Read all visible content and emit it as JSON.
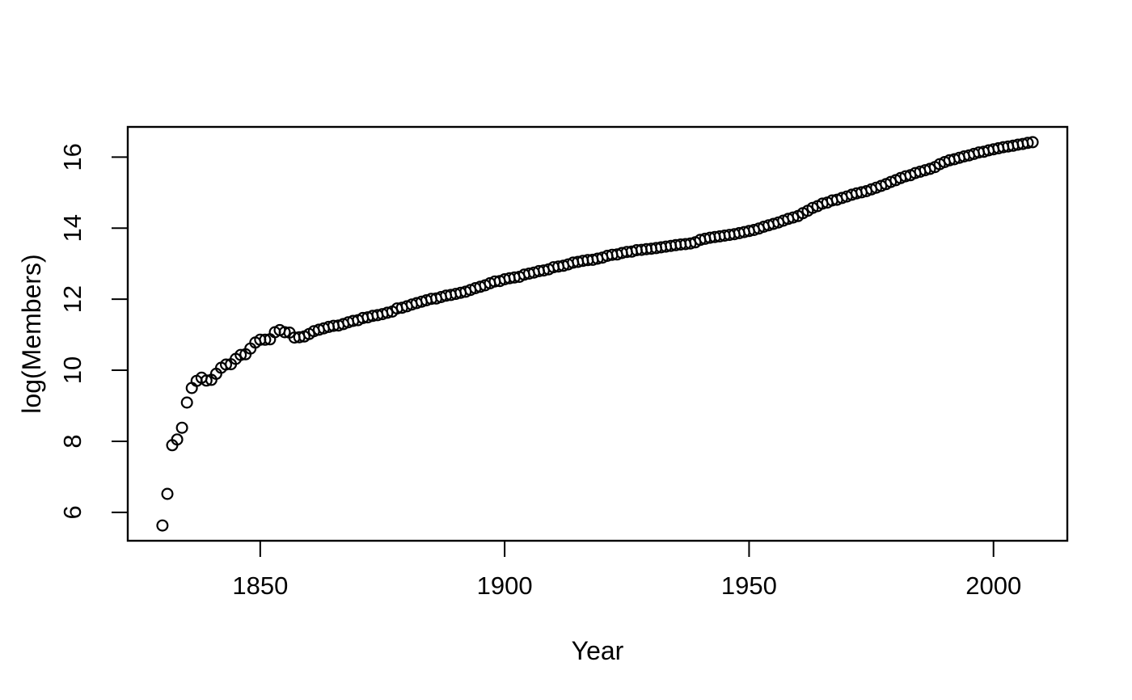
{
  "chart_data": {
    "type": "scatter",
    "xlabel": "Year",
    "ylabel": "log(Members)",
    "x_ticks": [
      1850,
      1900,
      1950,
      2000
    ],
    "y_ticks": [
      6,
      8,
      10,
      12,
      14,
      16
    ],
    "xlim": [
      1822.9,
      2015.1
    ],
    "ylim": [
      5.2,
      16.85
    ],
    "grid": false,
    "legend": "none",
    "marker": {
      "style": "open-circle",
      "color": "#000000",
      "fill": "none"
    },
    "colors": {
      "background": "#ffffff",
      "axis": "#000000",
      "text": "#000000"
    },
    "points": [
      [
        1830,
        5.63
      ],
      [
        1831,
        6.52
      ],
      [
        1832,
        7.89
      ],
      [
        1833,
        8.05
      ],
      [
        1834,
        8.38
      ],
      [
        1835,
        9.09
      ],
      [
        1836,
        9.5
      ],
      [
        1837,
        9.7
      ],
      [
        1838,
        9.79
      ],
      [
        1839,
        9.71
      ],
      [
        1840,
        9.73
      ],
      [
        1841,
        9.9
      ],
      [
        1842,
        10.07
      ],
      [
        1843,
        10.16
      ],
      [
        1844,
        10.17
      ],
      [
        1845,
        10.32
      ],
      [
        1846,
        10.43
      ],
      [
        1847,
        10.45
      ],
      [
        1848,
        10.61
      ],
      [
        1849,
        10.78
      ],
      [
        1850,
        10.86
      ],
      [
        1851,
        10.86
      ],
      [
        1852,
        10.87
      ],
      [
        1853,
        11.07
      ],
      [
        1854,
        11.13
      ],
      [
        1855,
        11.07
      ],
      [
        1856,
        11.06
      ],
      [
        1857,
        10.92
      ],
      [
        1858,
        10.93
      ],
      [
        1859,
        10.95
      ],
      [
        1860,
        11.02
      ],
      [
        1861,
        11.1
      ],
      [
        1862,
        11.14
      ],
      [
        1863,
        11.18
      ],
      [
        1864,
        11.22
      ],
      [
        1865,
        11.25
      ],
      [
        1866,
        11.26
      ],
      [
        1867,
        11.3
      ],
      [
        1868,
        11.35
      ],
      [
        1869,
        11.39
      ],
      [
        1870,
        11.41
      ],
      [
        1871,
        11.47
      ],
      [
        1872,
        11.49
      ],
      [
        1873,
        11.53
      ],
      [
        1874,
        11.55
      ],
      [
        1875,
        11.58
      ],
      [
        1876,
        11.62
      ],
      [
        1877,
        11.65
      ],
      [
        1878,
        11.74
      ],
      [
        1879,
        11.76
      ],
      [
        1880,
        11.8
      ],
      [
        1881,
        11.85
      ],
      [
        1882,
        11.89
      ],
      [
        1883,
        11.93
      ],
      [
        1884,
        11.97
      ],
      [
        1885,
        12.01
      ],
      [
        1886,
        12.02
      ],
      [
        1887,
        12.06
      ],
      [
        1888,
        12.1
      ],
      [
        1889,
        12.12
      ],
      [
        1890,
        12.15
      ],
      [
        1891,
        12.18
      ],
      [
        1892,
        12.21
      ],
      [
        1893,
        12.26
      ],
      [
        1894,
        12.31
      ],
      [
        1895,
        12.35
      ],
      [
        1896,
        12.39
      ],
      [
        1897,
        12.45
      ],
      [
        1898,
        12.5
      ],
      [
        1899,
        12.51
      ],
      [
        1900,
        12.56
      ],
      [
        1901,
        12.59
      ],
      [
        1902,
        12.61
      ],
      [
        1903,
        12.63
      ],
      [
        1904,
        12.69
      ],
      [
        1905,
        12.72
      ],
      [
        1906,
        12.75
      ],
      [
        1907,
        12.79
      ],
      [
        1908,
        12.81
      ],
      [
        1909,
        12.84
      ],
      [
        1910,
        12.9
      ],
      [
        1911,
        12.92
      ],
      [
        1912,
        12.94
      ],
      [
        1913,
        12.98
      ],
      [
        1914,
        13.03
      ],
      [
        1915,
        13.05
      ],
      [
        1916,
        13.08
      ],
      [
        1917,
        13.1
      ],
      [
        1918,
        13.11
      ],
      [
        1919,
        13.14
      ],
      [
        1920,
        13.17
      ],
      [
        1921,
        13.22
      ],
      [
        1922,
        13.25
      ],
      [
        1923,
        13.26
      ],
      [
        1924,
        13.3
      ],
      [
        1925,
        13.33
      ],
      [
        1926,
        13.34
      ],
      [
        1927,
        13.38
      ],
      [
        1928,
        13.39
      ],
      [
        1929,
        13.41
      ],
      [
        1930,
        13.42
      ],
      [
        1931,
        13.44
      ],
      [
        1932,
        13.46
      ],
      [
        1933,
        13.48
      ],
      [
        1934,
        13.5
      ],
      [
        1935,
        13.52
      ],
      [
        1936,
        13.54
      ],
      [
        1937,
        13.55
      ],
      [
        1938,
        13.57
      ],
      [
        1939,
        13.6
      ],
      [
        1940,
        13.67
      ],
      [
        1941,
        13.7
      ],
      [
        1942,
        13.73
      ],
      [
        1943,
        13.75
      ],
      [
        1944,
        13.77
      ],
      [
        1945,
        13.79
      ],
      [
        1946,
        13.81
      ],
      [
        1947,
        13.83
      ],
      [
        1948,
        13.86
      ],
      [
        1949,
        13.89
      ],
      [
        1950,
        13.92
      ],
      [
        1951,
        13.95
      ],
      [
        1952,
        13.99
      ],
      [
        1953,
        14.04
      ],
      [
        1954,
        14.08
      ],
      [
        1955,
        14.12
      ],
      [
        1956,
        14.16
      ],
      [
        1957,
        14.21
      ],
      [
        1958,
        14.26
      ],
      [
        1959,
        14.3
      ],
      [
        1960,
        14.34
      ],
      [
        1961,
        14.42
      ],
      [
        1962,
        14.49
      ],
      [
        1963,
        14.57
      ],
      [
        1964,
        14.62
      ],
      [
        1965,
        14.69
      ],
      [
        1966,
        14.72
      ],
      [
        1967,
        14.78
      ],
      [
        1968,
        14.8
      ],
      [
        1969,
        14.85
      ],
      [
        1970,
        14.89
      ],
      [
        1971,
        14.94
      ],
      [
        1972,
        14.98
      ],
      [
        1973,
        15.01
      ],
      [
        1974,
        15.04
      ],
      [
        1975,
        15.09
      ],
      [
        1976,
        15.14
      ],
      [
        1977,
        15.19
      ],
      [
        1978,
        15.24
      ],
      [
        1979,
        15.3
      ],
      [
        1980,
        15.35
      ],
      [
        1981,
        15.41
      ],
      [
        1982,
        15.46
      ],
      [
        1983,
        15.49
      ],
      [
        1984,
        15.55
      ],
      [
        1985,
        15.59
      ],
      [
        1986,
        15.63
      ],
      [
        1987,
        15.67
      ],
      [
        1988,
        15.72
      ],
      [
        1989,
        15.8
      ],
      [
        1990,
        15.86
      ],
      [
        1991,
        15.91
      ],
      [
        1992,
        15.94
      ],
      [
        1993,
        15.98
      ],
      [
        1994,
        16.02
      ],
      [
        1995,
        16.05
      ],
      [
        1996,
        16.09
      ],
      [
        1997,
        16.13
      ],
      [
        1998,
        16.15
      ],
      [
        1999,
        16.19
      ],
      [
        2000,
        16.22
      ],
      [
        2001,
        16.25
      ],
      [
        2002,
        16.28
      ],
      [
        2003,
        16.3
      ],
      [
        2004,
        16.32
      ],
      [
        2005,
        16.35
      ],
      [
        2006,
        16.37
      ],
      [
        2007,
        16.4
      ],
      [
        2008,
        16.42
      ]
    ]
  }
}
